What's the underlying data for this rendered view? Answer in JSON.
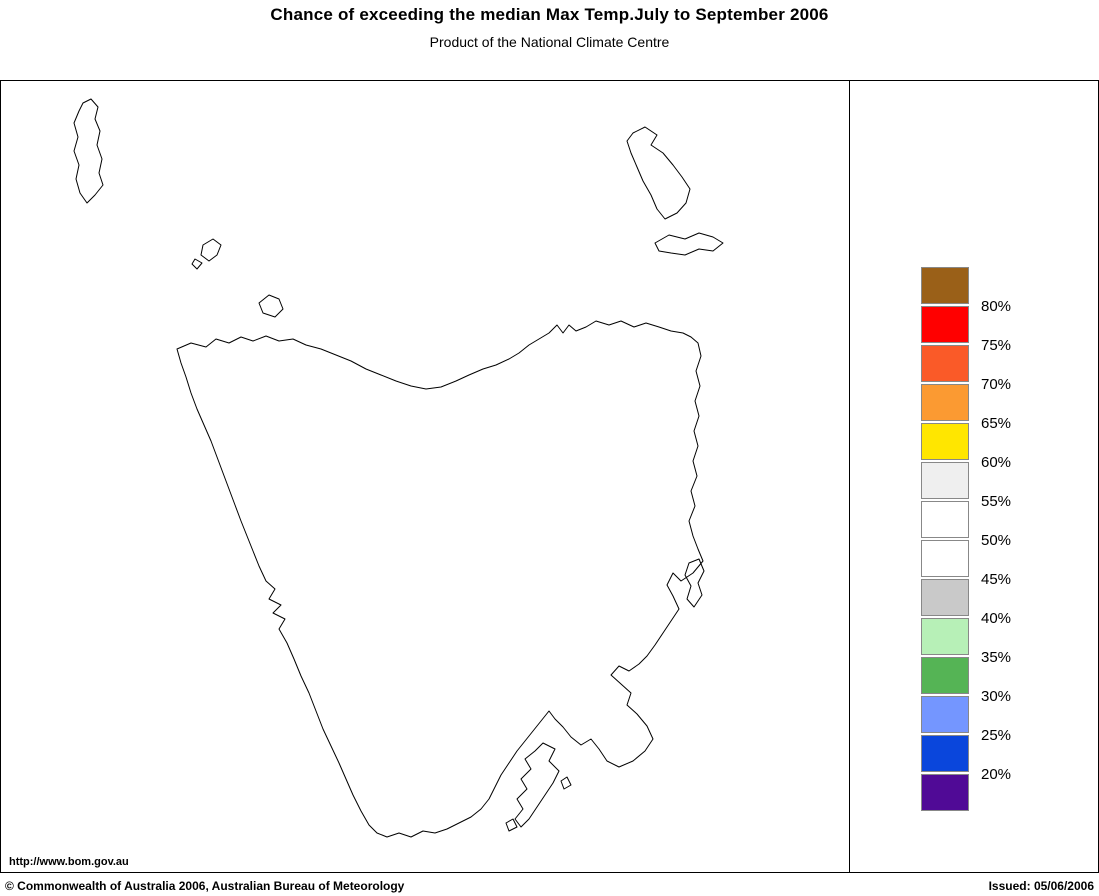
{
  "header": {
    "title": "Chance of exceeding the median Max Temp.July to September 2006",
    "subtitle": "Product of the National Climate Centre"
  },
  "map": {
    "region": "Tasmania",
    "url_label": "http://www.bom.gov.au",
    "outline_color": "#000000",
    "fill_color": "#ffffff"
  },
  "legend": {
    "unit": "percent chance",
    "entries": [
      {
        "color": "#9A6018",
        "label_below": "80%"
      },
      {
        "color": "#FF0000",
        "label_below": "75%"
      },
      {
        "color": "#FA5A28",
        "label_below": "70%"
      },
      {
        "color": "#FB9A32",
        "label_below": "65%"
      },
      {
        "color": "#FFE600",
        "label_below": "60%"
      },
      {
        "color": "#EFEFEF",
        "label_below": "55%"
      },
      {
        "color": "#FFFFFF",
        "label_below": "50%"
      },
      {
        "color": "#FFFFFF",
        "label_below": "45%"
      },
      {
        "color": "#C9C9C9",
        "label_below": "40%"
      },
      {
        "color": "#B7F0B7",
        "label_below": "35%"
      },
      {
        "color": "#55B455",
        "label_below": "30%"
      },
      {
        "color": "#7496FF",
        "label_below": "25%"
      },
      {
        "color": "#0A46DC",
        "label_below": "20%"
      },
      {
        "color": "#500A96",
        "label_below": ""
      }
    ]
  },
  "footer": {
    "copyright": "© Commonwealth of Australia 2006, Australian Bureau of Meteorology",
    "issued": "Issued: 05/06/2006"
  }
}
